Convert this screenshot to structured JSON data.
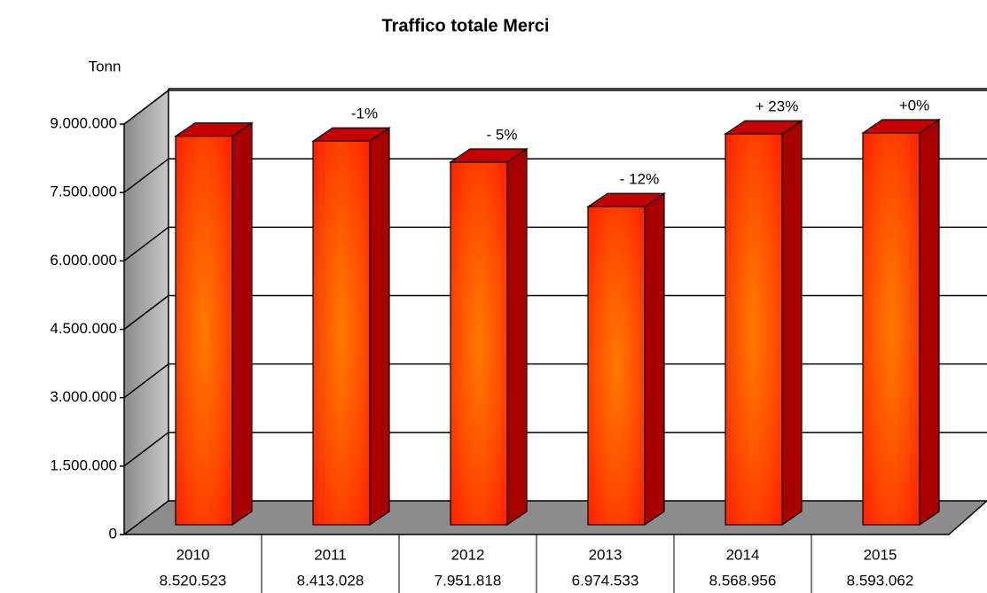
{
  "chart_data": {
    "type": "bar3d",
    "title": "Traffico totale Merci",
    "y_label": "Tonn",
    "categories": [
      "2010",
      "2011",
      "2012",
      "2013",
      "2014",
      "2015"
    ],
    "values": [
      8520523,
      8413028,
      7951818,
      6974533,
      8568956,
      8593062
    ],
    "value_labels": [
      "8.520.523",
      "8.413.028",
      "7.951.818",
      "6.974.533",
      "8.568.956",
      "8.593.062"
    ],
    "change_labels": [
      null,
      "-1%",
      "- 5%",
      "- 12%",
      "+ 23%",
      "+0%"
    ],
    "color": "#ff2a00",
    "ylim": [
      0,
      9000000
    ],
    "yticks": [
      {
        "value": 0,
        "label": "0"
      },
      {
        "value": 1500000,
        "label": "1.500.000"
      },
      {
        "value": 3000000,
        "label": "3.000.000"
      },
      {
        "value": 4500000,
        "label": "4.500.000"
      },
      {
        "value": 6000000,
        "label": "6.000.000"
      },
      {
        "value": 7500000,
        "label": "7.500.000"
      },
      {
        "value": 9000000,
        "label": "9.000.000"
      }
    ],
    "grid": true
  }
}
